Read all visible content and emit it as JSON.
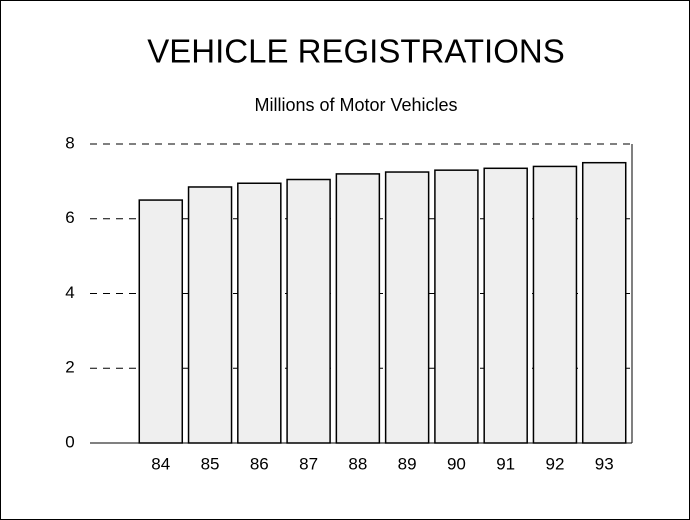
{
  "chart_data": {
    "type": "bar",
    "title": "VEHICLE REGISTRATIONS",
    "subtitle": "Millions of Motor Vehicles",
    "categories": [
      "84",
      "85",
      "86",
      "87",
      "88",
      "89",
      "90",
      "91",
      "92",
      "93"
    ],
    "values": [
      6.5,
      6.85,
      6.95,
      7.05,
      7.2,
      7.25,
      7.3,
      7.35,
      7.4,
      7.5
    ],
    "color": "#efefef",
    "ylim": [
      0,
      8
    ],
    "yticks": [
      0,
      2,
      4,
      6,
      8
    ],
    "grid": true
  }
}
